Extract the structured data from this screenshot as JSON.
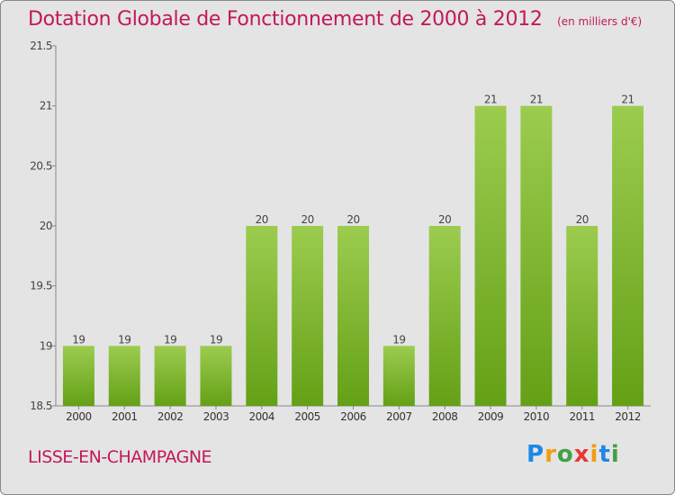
{
  "header": {
    "title": "Dotation Globale de Fonctionnement de 2000 à 2012",
    "subtitle": "(en milliers d'€)"
  },
  "footer": {
    "commune": "LISSE-EN-CHAMPAGNE",
    "brand": "Proxiti",
    "brand_letters": [
      "P",
      "r",
      "o",
      "x",
      "i",
      "t",
      "i"
    ],
    "brand_colors": [
      "#1e88e5",
      "#f39c12",
      "#43a047",
      "#e53935",
      "#f39c12",
      "#1e88e5",
      "#43a047"
    ]
  },
  "colors": {
    "title": "#c2185b",
    "bar_top": "#9ccc4f",
    "bar_bottom": "#64a016",
    "background": "#e4e4e4"
  },
  "chart_data": {
    "type": "bar",
    "title": "Dotation Globale de Fonctionnement de 2000 à 2012",
    "subtitle": "(en milliers d'€)",
    "categories": [
      "2000",
      "2001",
      "2002",
      "2003",
      "2004",
      "2005",
      "2006",
      "2007",
      "2008",
      "2009",
      "2010",
      "2011",
      "2012"
    ],
    "values": [
      19,
      19,
      19,
      19,
      20,
      20,
      20,
      19,
      20,
      21,
      21,
      20,
      21
    ],
    "data_labels": [
      "19",
      "19",
      "19",
      "19",
      "20",
      "20",
      "20",
      "19",
      "20",
      "21",
      "21",
      "20",
      "21"
    ],
    "ylim": [
      18.5,
      21.5
    ],
    "yticks": [
      18.5,
      19,
      19.5,
      20,
      20.5,
      21,
      21.5
    ],
    "ytick_labels": [
      "18.5",
      "19",
      "19.5",
      "20",
      "20.5",
      "21",
      "21.5"
    ],
    "xlabel": "",
    "ylabel": "",
    "grid": false,
    "legend": "none"
  }
}
